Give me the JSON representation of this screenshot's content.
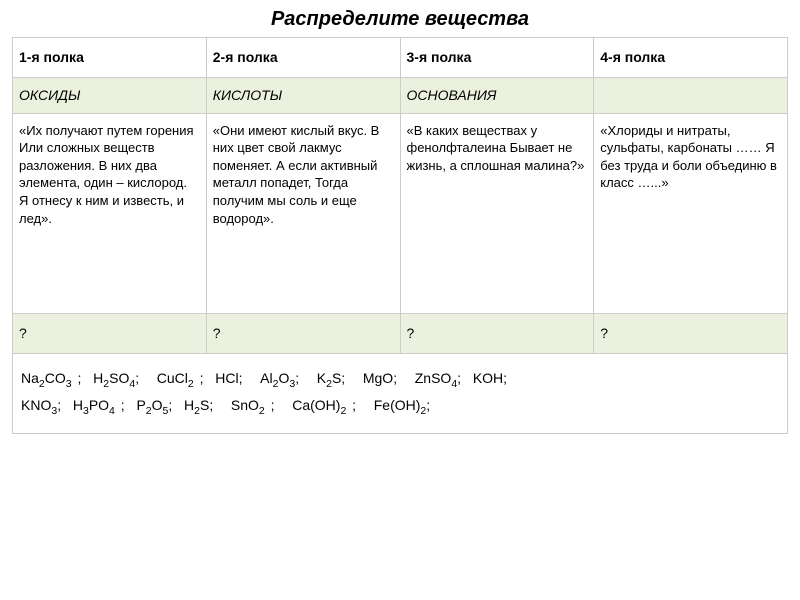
{
  "title": "Распределите вещества",
  "table": {
    "headers": [
      "1-я полка",
      "2-я полка",
      "3-я полка",
      "4-я полка"
    ],
    "categories": [
      "ОКСИДЫ",
      "КИСЛОТЫ",
      "ОСНОВАНИЯ",
      ""
    ],
    "descriptions": [
      "«Их получают путем горения\nИли сложных веществ разложения.\nВ них два элемента, один – кислород.\nЯ отнесу к ним и известь, и лед».",
      " «Они имеют кислый вкус.\nВ них цвет свой лакмус поменяет.\nА если активный металл попадет,\nТогда получим мы соль и еще водород».",
      " «В каких веществах у фенолфталеина\nБывает не жизнь, а сплошная малина?»",
      " «Хлориды и нитраты, сульфаты, карбонаты ……\nЯ без труда и боли объединю\nв класс …...»"
    ],
    "questions": [
      "?",
      "?",
      "?",
      "?"
    ],
    "formula_line1": "Na₂CO₃ ;  H₂SO₄;   CuCl₂ ;  HCl;   Al₂O₃;   K₂S;   MgO;   ZnSO₄;  KOH;",
    "formula_line2": "KNO₃;  H₃PO₄ ;  P₂O₅;  H₂S;   SnO₂ ;   Ca(OH)₂ ;   Fe(OH)₂;"
  },
  "colors": {
    "category_bg": "#ebf1de",
    "question_bg": "#ebf1de",
    "border": "#cccccc",
    "text": "#000000",
    "background": "#ffffff"
  },
  "typography": {
    "title_fontsize": 20,
    "header_fontsize": 14,
    "cell_fontsize": 14,
    "desc_fontsize": 13
  }
}
